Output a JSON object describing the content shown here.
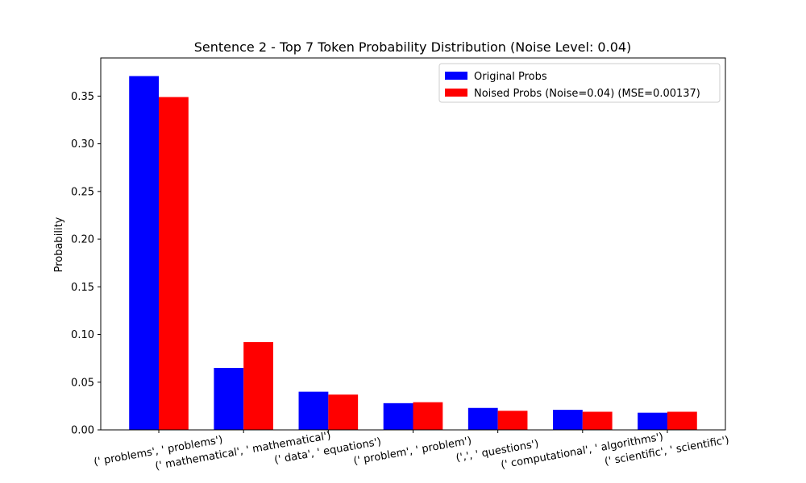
{
  "chart_data": {
    "type": "bar",
    "title": "Sentence 2 - Top 7 Token Probability Distribution (Noise Level: 0.04)",
    "xlabel": "",
    "ylabel": "Probability",
    "ylim": [
      0,
      0.39
    ],
    "yticks": [
      "0.00",
      "0.05",
      "0.10",
      "0.15",
      "0.20",
      "0.25",
      "0.30",
      "0.35"
    ],
    "categories": [
      "(' problems', ' problems')",
      "(' mathematical', ' mathematical')",
      "(' data', ' equations')",
      "(' problem', ' problem')",
      "(',', ' questions')",
      "(' computational', ' algorithms')",
      "(' scientific', ' scientific')"
    ],
    "series": [
      {
        "name": "Original Probs",
        "color": "#0000ff",
        "values": [
          0.371,
          0.065,
          0.04,
          0.028,
          0.023,
          0.021,
          0.018
        ]
      },
      {
        "name": "Noised Probs (Noise=0.04) (MSE=0.00137)",
        "color": "#ff0000",
        "values": [
          0.349,
          0.092,
          0.037,
          0.029,
          0.02,
          0.019,
          0.019
        ]
      }
    ],
    "legend_position": "top-right",
    "grid": false
  }
}
